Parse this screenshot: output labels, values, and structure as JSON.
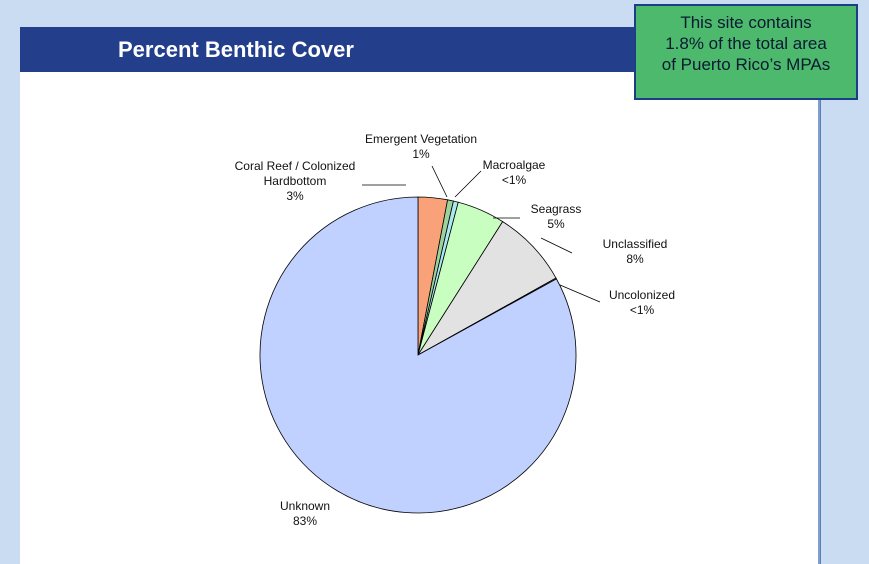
{
  "header": {
    "title": "Percent Benthic Cover"
  },
  "callout": {
    "lines": [
      "This site contains",
      "1.8% of the total area",
      "of Puerto Rico’s MPAs"
    ]
  },
  "colors": {
    "header_bg": "#233f8c",
    "callout_bg": "#4db96c",
    "page_bg": "#c9dcf2"
  },
  "chart_data": {
    "type": "pie",
    "start": "12 o'clock",
    "direction": "clockwise",
    "slices": [
      {
        "label": "Coral Reef / Colonized Hardbottom",
        "display": "3%",
        "value": 3.0,
        "color": "#f9a27a"
      },
      {
        "label": "Emergent Vegetation",
        "display": "1%",
        "value": 0.6,
        "color": "#9bd39b"
      },
      {
        "label": "Macroalgae",
        "display": "<1%",
        "value": 0.5,
        "color": "#a8e8f0"
      },
      {
        "label": "Seagrass",
        "display": "5%",
        "value": 4.9,
        "color": "#c8ffc0"
      },
      {
        "label": "Unclassified",
        "display": "8%",
        "value": 7.9,
        "color": "#e2e2e2"
      },
      {
        "label": "Uncolonized",
        "display": "<1%",
        "value": 0.1,
        "color": "#ffffff"
      },
      {
        "label": "Unknown",
        "display": "83%",
        "value": 83.0,
        "color": "#c0d0ff"
      }
    ]
  }
}
